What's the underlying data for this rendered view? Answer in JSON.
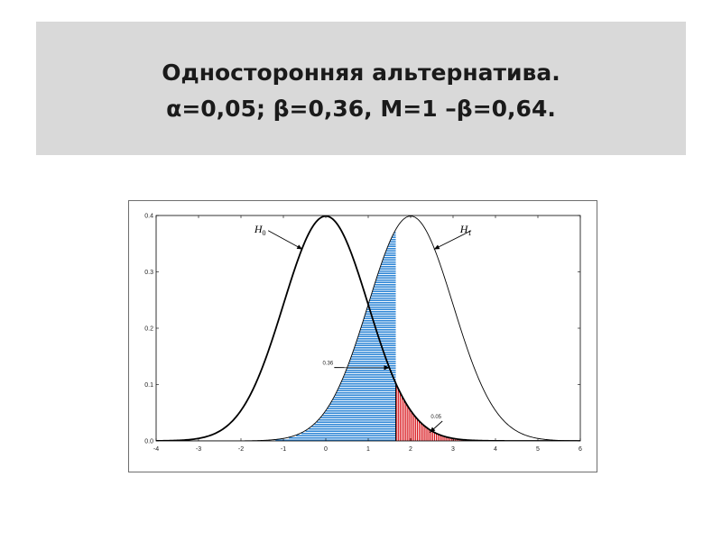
{
  "title": {
    "line1": "Односторонняя альтернатива.",
    "line2": "α=0,05; β=0,36, M=1 –β=0,64."
  },
  "colors": {
    "band": "#d9d9d9",
    "beta_fill": "#2e86d6",
    "alpha_fill": "#d9161c",
    "curve": "#000000"
  },
  "chart_data": {
    "type": "line",
    "xlim": [
      -4,
      6
    ],
    "ylim": [
      0,
      0.4
    ],
    "x_ticks": [
      -4,
      -3,
      -2,
      -1,
      0,
      1,
      2,
      3,
      4,
      5,
      6
    ],
    "x_tick_labels": [
      "-4",
      "-3",
      "-2",
      "-1",
      "0",
      "1",
      "2",
      "3",
      "4",
      "5",
      "6"
    ],
    "y_ticks": [
      0,
      0.1,
      0.2,
      0.3,
      0.4
    ],
    "y_tick_labels": [
      "0.0",
      "0.1",
      "0.2",
      "0.3",
      "0.4"
    ],
    "critical_value": 1.65,
    "series": [
      {
        "name": "H0",
        "sub": "0",
        "distribution": "normal",
        "mean": 0,
        "sd": 1
      },
      {
        "name": "H1",
        "sub": "1",
        "distribution": "normal",
        "mean": 2,
        "sd": 1
      }
    ],
    "regions": [
      {
        "label": "0.36",
        "under": "H1",
        "from": -4,
        "to": 1.65,
        "hatch": "horizontal"
      },
      {
        "label": "0.05",
        "under": "H0",
        "from": 1.65,
        "to": 6,
        "hatch": "vertical"
      }
    ],
    "annotations": [
      {
        "text": "H",
        "sub": "0",
        "points_to": {
          "x": -0.55,
          "y": 0.34
        },
        "at": {
          "x": -1.55,
          "y": 0.37
        }
      },
      {
        "text": "H",
        "sub": "1",
        "points_to": {
          "x": 2.55,
          "y": 0.34
        },
        "at": {
          "x": 3.3,
          "y": 0.37
        }
      },
      {
        "text": "0.36",
        "points_to": {
          "x": 1.5,
          "y": 0.13
        },
        "at": {
          "x": 0.05,
          "y": 0.135
        }
      },
      {
        "text": "0.05",
        "points_to": {
          "x": 2.45,
          "y": 0.015
        },
        "at": {
          "x": 2.6,
          "y": 0.04
        }
      }
    ]
  }
}
